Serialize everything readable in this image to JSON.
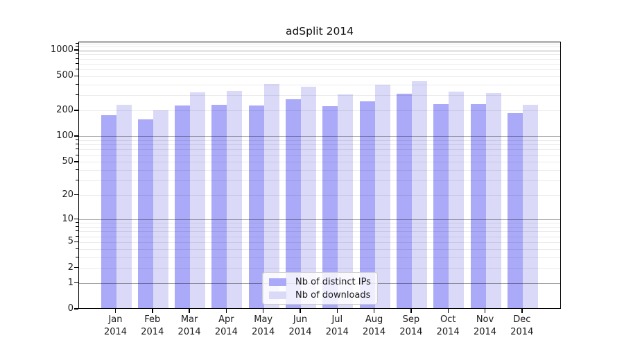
{
  "chart_data": {
    "type": "bar",
    "title": "adSplit 2014",
    "categories": [
      "Jan",
      "Feb",
      "Mar",
      "Apr",
      "May",
      "Jun",
      "Jul",
      "Aug",
      "Sep",
      "Oct",
      "Nov",
      "Dec"
    ],
    "category_sublabel": "2014",
    "series": [
      {
        "name": "Nb of distinct IPs",
        "color": "#aaaaf8",
        "values": [
          172,
          152,
          224,
          228,
          224,
          265,
          218,
          250,
          303,
          233,
          232,
          180
        ]
      },
      {
        "name": "Nb of downloads",
        "color": "#dadaf8",
        "values": [
          228,
          196,
          315,
          332,
          395,
          368,
          300,
          390,
          424,
          320,
          313,
          228
        ]
      }
    ],
    "y_scale": "log1p",
    "y_ticks": [
      0,
      1,
      2,
      5,
      10,
      20,
      50,
      100,
      200,
      500,
      1000
    ],
    "ylim": [
      0,
      1250
    ],
    "xlabel": "",
    "ylabel": "",
    "grid": true,
    "legend_position": "lower center",
    "colors": {
      "spine": "#000000",
      "major_grid": "#b0b0b0",
      "minor_grid": "#ececec",
      "background": "#ffffff"
    }
  }
}
